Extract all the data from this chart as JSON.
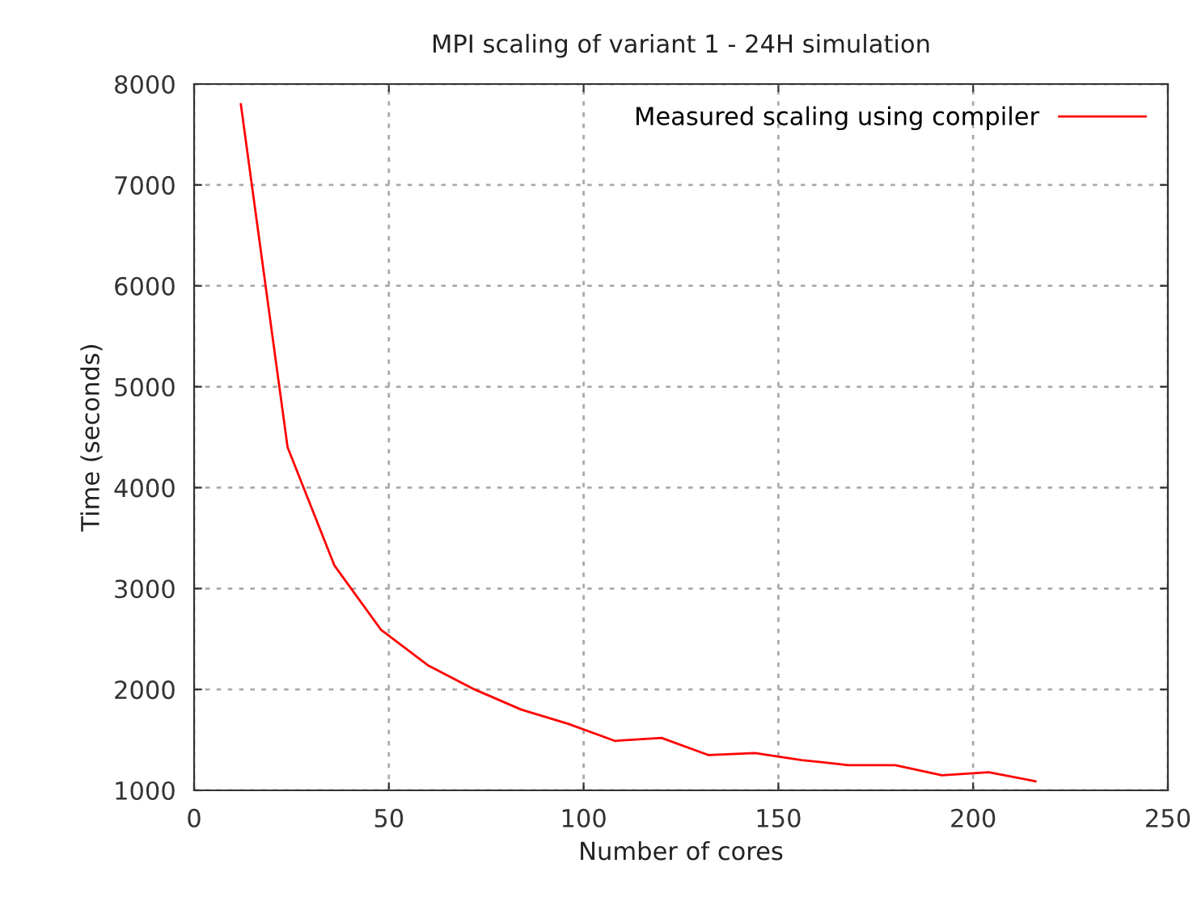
{
  "chart_data": {
    "type": "line",
    "title": "MPI scaling of variant 1 - 24H simulation",
    "xlabel": "Number of cores",
    "ylabel": "Time (seconds)",
    "x": [
      12,
      24,
      36,
      48,
      60,
      72,
      84,
      96,
      108,
      120,
      132,
      144,
      156,
      168,
      180,
      192,
      204,
      216
    ],
    "series": [
      {
        "name": "Measured scaling using compiler",
        "color": "#ff0000",
        "values": [
          7800,
          4400,
          3230,
          2590,
          2240,
          2000,
          1800,
          1660,
          1490,
          1520,
          1350,
          1370,
          1300,
          1250,
          1250,
          1150,
          1180,
          1090
        ]
      }
    ],
    "xlim": [
      0,
      250
    ],
    "xticks": [
      0,
      50,
      100,
      150,
      200,
      250
    ],
    "ylim": [
      1000,
      8000
    ],
    "yticks": [
      1000,
      2000,
      3000,
      4000,
      5000,
      6000,
      7000,
      8000
    ],
    "grid": true,
    "legend": "top right",
    "marker": "none",
    "line_style": "solid"
  }
}
